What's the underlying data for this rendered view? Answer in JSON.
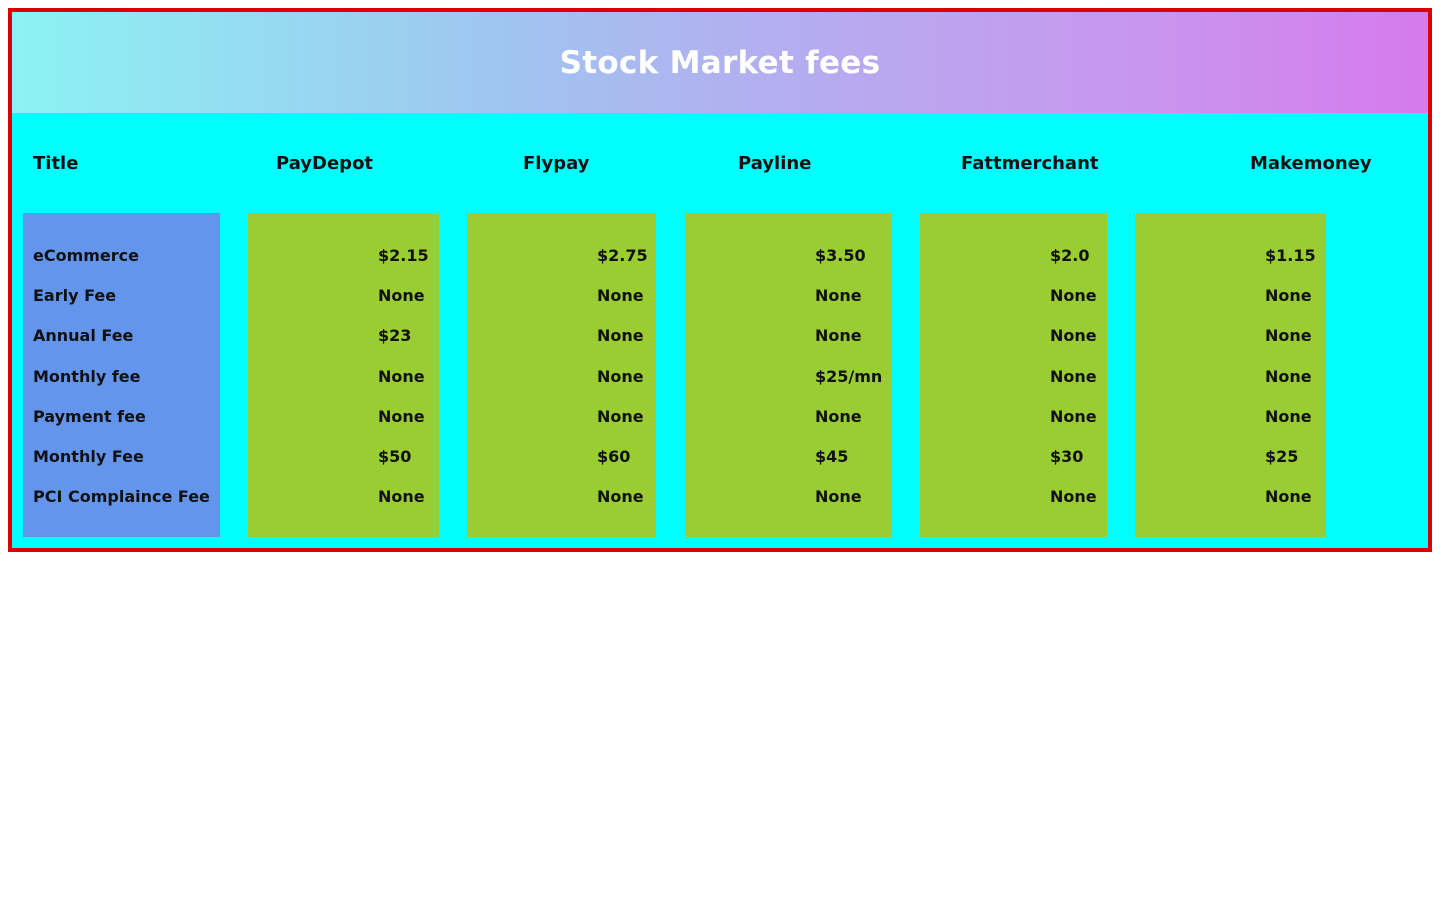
{
  "header": {
    "title": "Stock Market fees"
  },
  "table": {
    "columns": [
      "Title",
      "PayDepot",
      "Flypay",
      "Payline",
      "Fattmerchant",
      "Makemoney"
    ],
    "row_labels": [
      "eCommerce",
      "Early Fee",
      "Annual Fee",
      "Monthly fee",
      "Payment fee",
      "Monthly Fee",
      "PCI Complaince Fee"
    ],
    "providers": [
      {
        "name": "PayDepot",
        "values": [
          "$2.15",
          "None",
          "$23",
          "None",
          "None",
          "$50",
          "None"
        ]
      },
      {
        "name": "Flypay",
        "values": [
          "$2.75",
          "None",
          "None",
          "None",
          "None",
          "$60",
          "None"
        ]
      },
      {
        "name": "Payline",
        "values": [
          "$3.50",
          "None",
          "None",
          "$25/mn",
          "None",
          "$45",
          "None"
        ]
      },
      {
        "name": "Fattmerchant",
        "values": [
          "$2.0",
          "None",
          "None",
          "None",
          "None",
          "$30",
          "None"
        ]
      },
      {
        "name": "Makemoney",
        "values": [
          "$1.15",
          "None",
          "None",
          "None",
          "None",
          "$25",
          "None"
        ]
      }
    ]
  },
  "colors": {
    "border": "#dd0000",
    "background": "#00ffff",
    "label_column": "#6495ed",
    "value_column": "#9acd32",
    "header_text": "#ffffff"
  }
}
